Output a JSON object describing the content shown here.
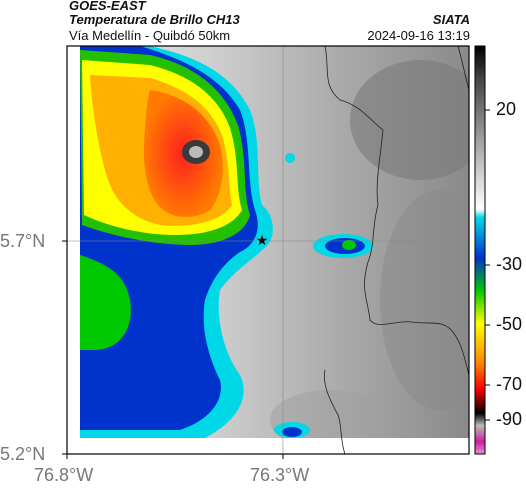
{
  "header": {
    "satellite": "GOES-EAST",
    "product": "Temperatura de Brillo CH13",
    "region": "Vía Medellín - Quibdó 50km",
    "organization": "SIATA",
    "datetime": "2024-09-16 13:19"
  },
  "axes": {
    "lat_ticks": [
      "5.7°N",
      "5.2°N"
    ],
    "lon_ticks": [
      "76.8°W",
      "76.3°W"
    ]
  },
  "colorbar": {
    "ticks": [
      "20",
      "-30",
      "-50",
      "-70",
      "-90"
    ],
    "values": [
      20,
      -30,
      -50,
      -70,
      -90
    ],
    "colors": [
      "#000000",
      "#d01fa0",
      "#ff0000",
      "#ffff00",
      "#00c800",
      "#0033cc",
      "#00d8e8",
      "#ffffff"
    ]
  },
  "map": {
    "marker": "star-icon",
    "colors": {
      "ocean_frame": "#ffffff",
      "land_dark": "#4a4a4a",
      "cold_core": "#3a3a3a"
    }
  }
}
